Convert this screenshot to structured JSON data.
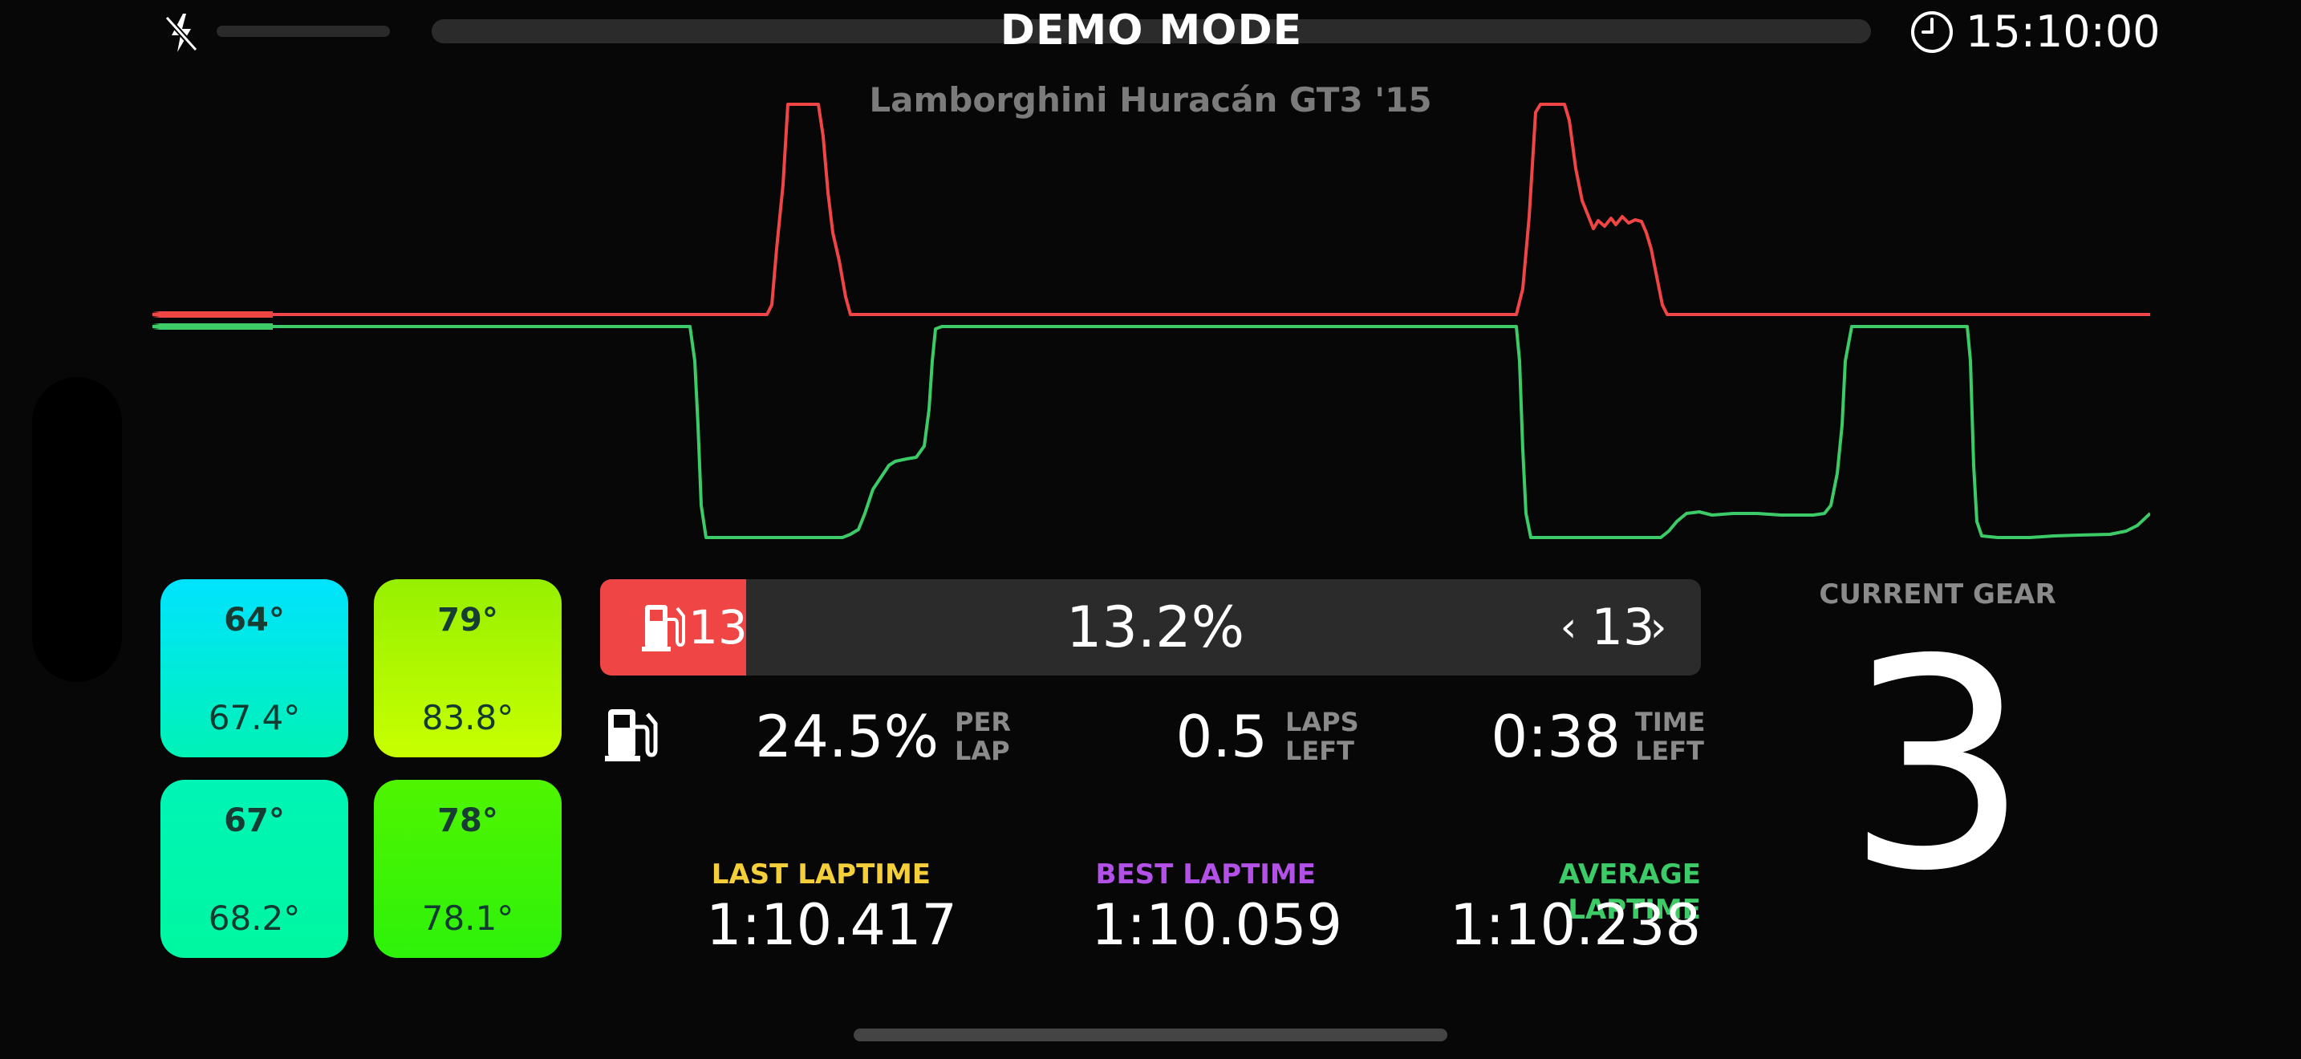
{
  "status_bar": {
    "mode": "DEMO MODE",
    "time": "15:10:00",
    "icons": [
      "flash-off-icon",
      "clock-icon"
    ]
  },
  "car": {
    "name": "Lamborghini Huracán GT3 '15"
  },
  "colors": {
    "throttle": "#3dcb68",
    "brake": "#f04545",
    "accent_fuel": "#f04545",
    "last_laptime": "#f5cf3a",
    "best_laptime": "#b250e8",
    "average_laptime": "#3dcb68"
  },
  "telemetry": {
    "series_colors": {
      "throttle": "#3dcb68",
      "brake": "#f04545"
    },
    "brake": [
      0,
      0,
      0,
      0,
      0,
      0,
      0,
      0,
      0,
      0,
      0,
      0,
      0,
      0,
      0,
      0,
      0,
      0,
      0,
      0,
      0,
      0,
      0,
      0,
      0,
      0,
      0,
      0,
      0,
      0,
      0,
      0,
      0,
      0,
      0,
      0,
      0,
      0,
      0,
      0,
      0,
      0,
      0,
      0,
      0,
      0,
      0,
      0,
      0,
      0,
      0,
      0,
      0,
      0,
      0,
      0,
      0,
      0,
      0,
      0,
      0,
      0,
      0,
      0,
      0,
      0,
      0,
      0,
      0,
      0,
      0,
      0,
      0,
      0,
      0,
      0,
      0,
      0,
      0,
      0,
      0,
      0,
      0,
      0,
      0,
      0,
      0,
      0,
      0,
      0,
      0,
      0,
      0,
      0,
      0,
      0,
      0,
      0,
      0,
      0,
      0,
      0,
      0,
      0,
      0,
      0,
      0,
      0,
      0,
      0,
      0,
      0,
      0,
      0,
      0,
      0,
      0,
      0,
      0,
      0,
      0,
      0,
      0,
      0,
      0,
      0,
      0,
      0,
      0,
      0,
      0,
      0,
      0,
      0,
      0,
      0,
      0,
      0,
      0,
      0,
      0,
      0,
      0,
      0,
      0,
      0,
      0,
      0,
      0,
      0,
      0,
      0,
      0,
      0,
      0,
      0,
      0,
      0,
      0,
      0,
      0,
      0,
      0,
      0,
      0,
      0,
      0,
      0,
      0,
      0,
      0,
      0,
      0,
      0,
      0,
      0,
      0,
      0,
      0,
      0,
      0,
      0,
      0,
      0,
      0,
      0,
      0,
      0,
      0,
      0,
      0,
      0,
      0,
      0,
      0,
      0,
      0,
      0,
      0,
      0
    ],
    "throttle": [
      1,
      1,
      1,
      1,
      1,
      1,
      1,
      1,
      1,
      1
    ]
  },
  "tyres": {
    "front_left": {
      "surface": "64°",
      "core": "67.4°",
      "color": "#00e3ff"
    },
    "front_right": {
      "surface": "79°",
      "core": "83.8°",
      "color": "#b4f700"
    },
    "rear_left": {
      "surface": "67°",
      "core": "68.2°",
      "color": "#00f5b6"
    },
    "rear_right": {
      "surface": "78°",
      "core": "78.1°",
      "color": "#3af400"
    }
  },
  "fuel": {
    "laps_value": "13",
    "percentage": "13.2%",
    "percentage_fraction": 0.132,
    "lap_selector": {
      "prev": "‹",
      "value": "13",
      "next": "›"
    },
    "per_lap": {
      "value": "24.5%",
      "label_line1": "PER",
      "label_line2": "LAP"
    },
    "laps_left": {
      "value": "0.5",
      "label_line1": "LAPS",
      "label_line2": "LEFT"
    },
    "time_left": {
      "value": "0:38",
      "label_line1": "TIME",
      "label_line2": "LEFT"
    },
    "icons": [
      "fuel-pump-icon"
    ]
  },
  "laptimes": {
    "last": {
      "label": "LAST LAPTIME",
      "value": "1:10.417"
    },
    "best": {
      "label": "BEST LAPTIME",
      "value": "1:10.059"
    },
    "average": {
      "label": "AVERAGE LAPTIME",
      "value": "1:10.238"
    }
  },
  "gear": {
    "label": "CURRENT GEAR",
    "value": "3"
  }
}
